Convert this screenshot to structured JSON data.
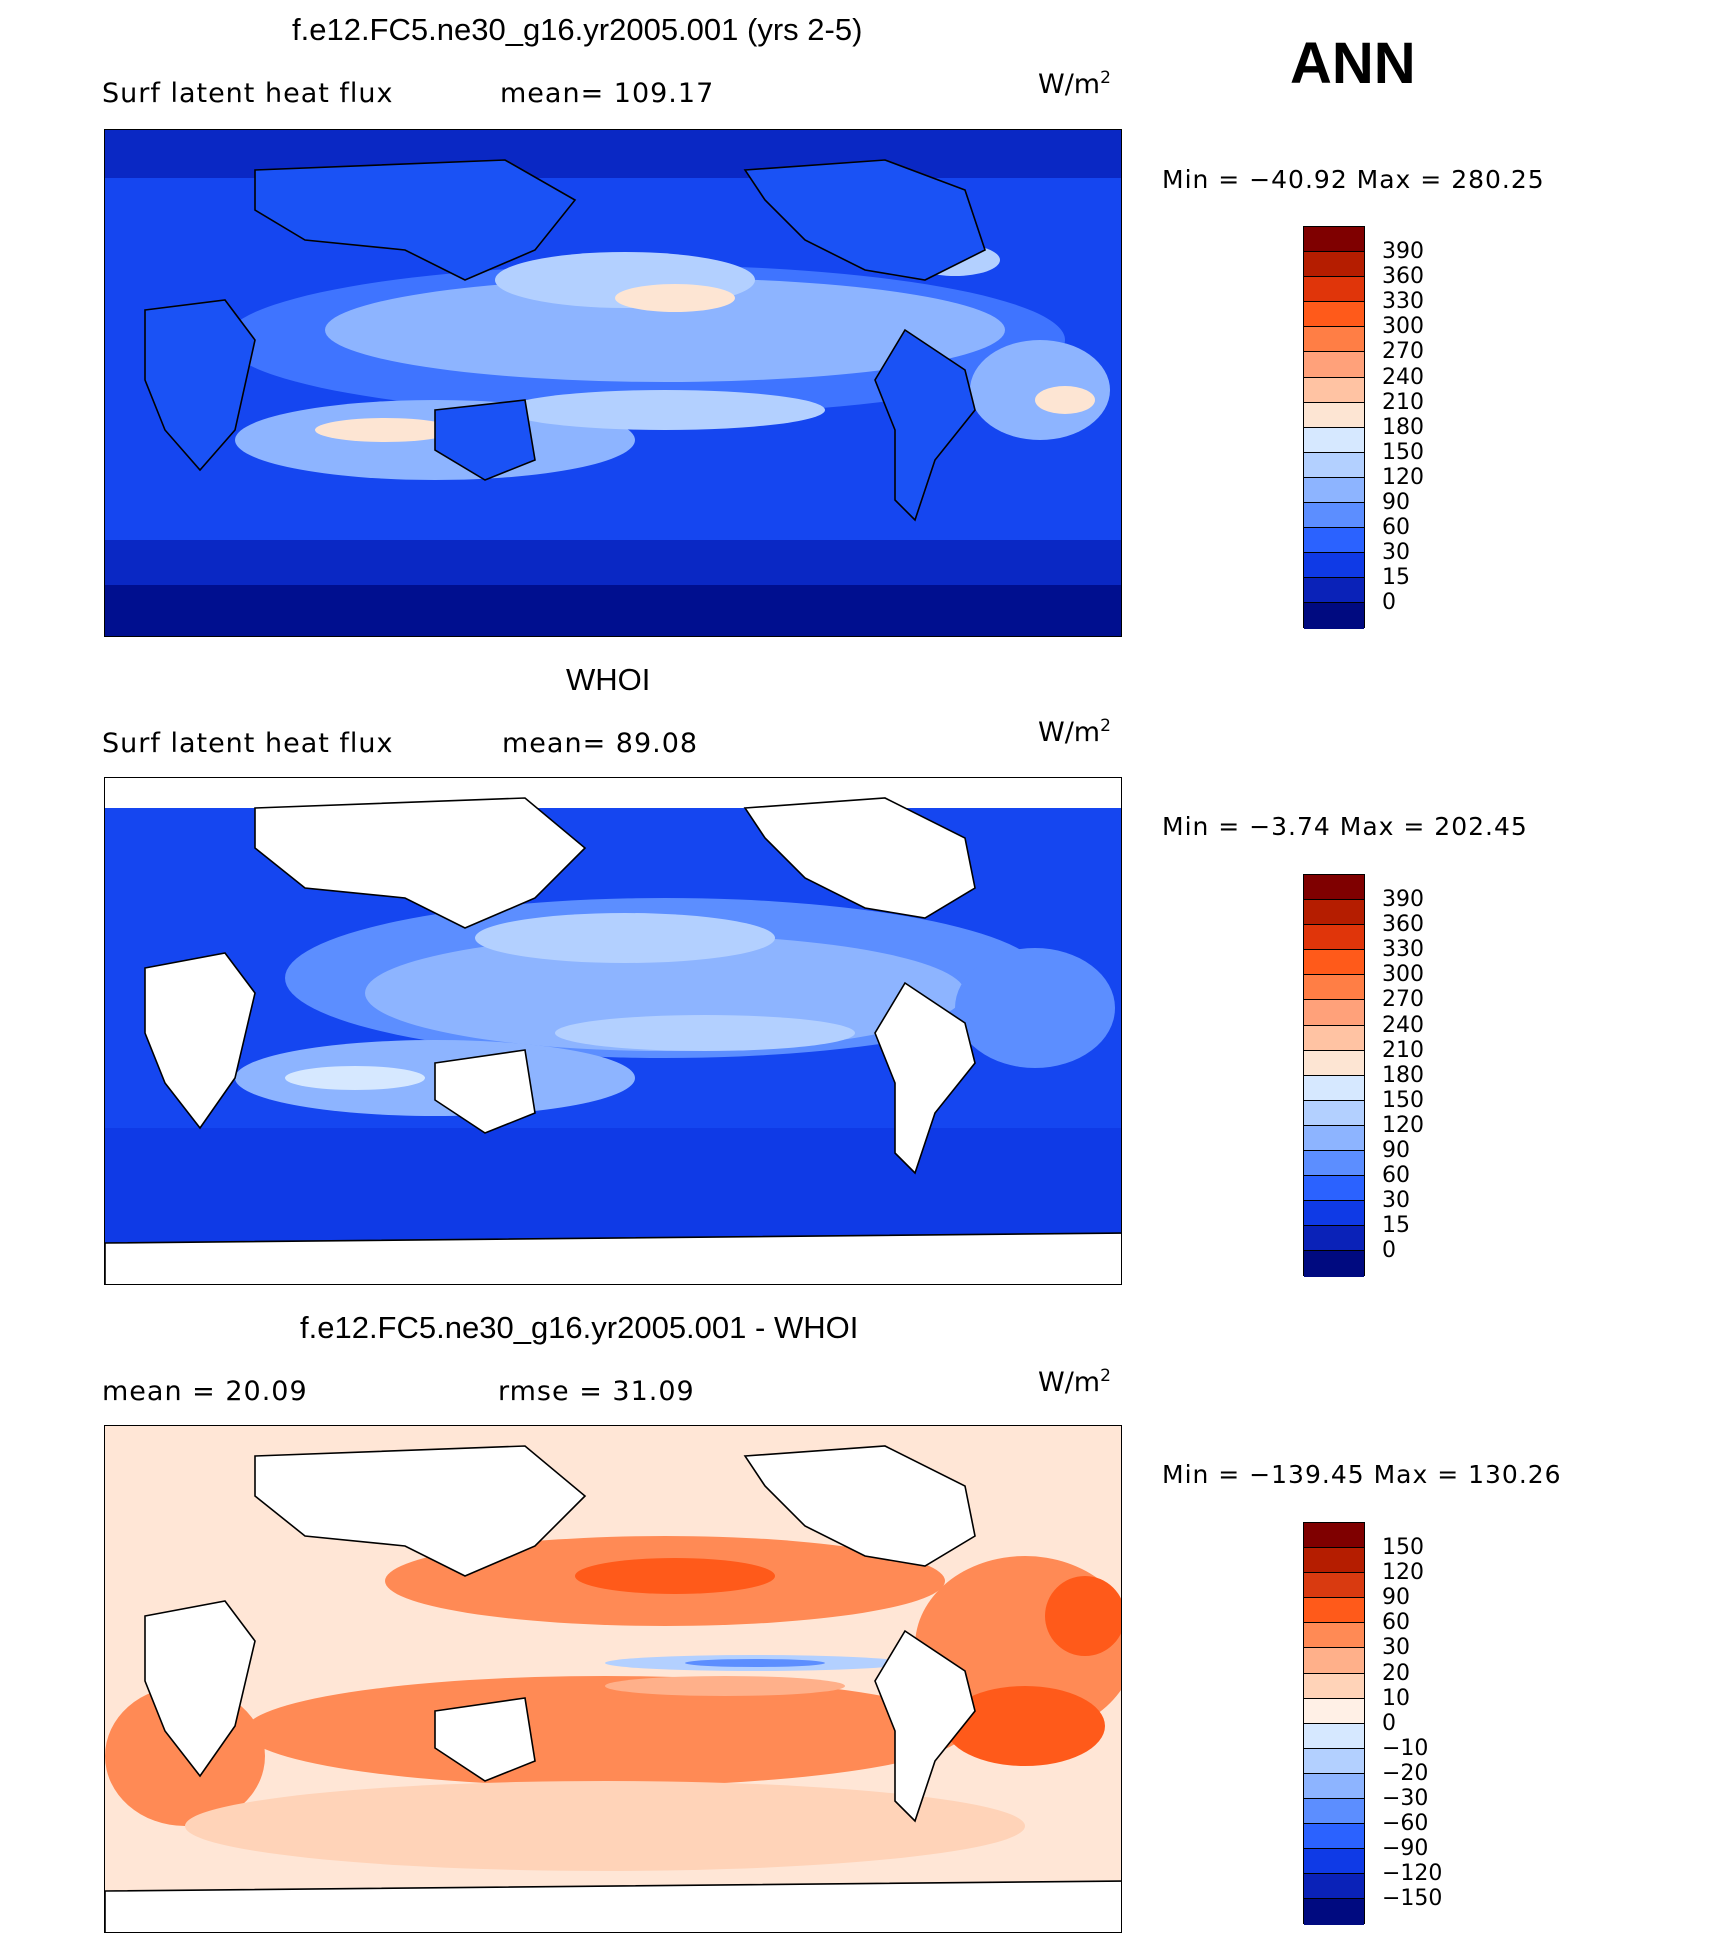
{
  "season": "ANN",
  "panels": [
    {
      "title": "f.e12.FC5.ne30_g16.yr2005.001 (yrs 2-5)",
      "field_label": "Surf  latent  heat  flux",
      "stat1": "mean=  109.17",
      "stat2": "",
      "units": "W/m",
      "units_exp": "2",
      "minmax": "Min  =  −40.92  Max  =  280.25",
      "style": "model",
      "colorbar_labels": [
        "390",
        "360",
        "330",
        "300",
        "270",
        "240",
        "210",
        "180",
        "150",
        "120",
        "90",
        "60",
        "30",
        "15",
        "0"
      ],
      "colorbar_colors": [
        "#7f0000",
        "#b51d00",
        "#e0350a",
        "#ff5a1a",
        "#ff7e45",
        "#ffa17a",
        "#ffc3a3",
        "#fde5d3",
        "#d6e8ff",
        "#b3d0ff",
        "#8db4ff",
        "#5c8eff",
        "#2b62ff",
        "#0f3ae6",
        "#0a22b8",
        "#000a80"
      ]
    },
    {
      "title": "WHOI",
      "field_label": "Surf  latent  heat  flux",
      "stat1": "mean=   89.08",
      "stat2": "",
      "units": "W/m",
      "units_exp": "2",
      "minmax": "Min  =    −3.74  Max  =  202.45",
      "style": "obs",
      "colorbar_labels": [
        "390",
        "360",
        "330",
        "300",
        "270",
        "240",
        "210",
        "180",
        "150",
        "120",
        "90",
        "60",
        "30",
        "15",
        "0"
      ],
      "colorbar_colors": [
        "#7f0000",
        "#b51d00",
        "#e0350a",
        "#ff5a1a",
        "#ff7e45",
        "#ffa17a",
        "#ffc3a3",
        "#fde5d3",
        "#d6e8ff",
        "#b3d0ff",
        "#8db4ff",
        "#5c8eff",
        "#2b62ff",
        "#0f3ae6",
        "#0a22b8",
        "#000a80"
      ]
    },
    {
      "title": "f.e12.FC5.ne30_g16.yr2005.001 - WHOI",
      "field_label": "",
      "stat1": "mean  =    20.09",
      "stat2": "rmse  =    31.09",
      "units": "W/m",
      "units_exp": "2",
      "minmax": "Min  =  −139.45  Max  =  130.26",
      "style": "diff",
      "colorbar_labels": [
        "150",
        "120",
        "90",
        "60",
        "30",
        "20",
        "10",
        "0",
        "−10",
        "−20",
        "−30",
        "−60",
        "−90",
        "−120",
        "−150"
      ],
      "colorbar_colors": [
        "#7f0000",
        "#b51d00",
        "#d93a10",
        "#ff5a1a",
        "#ff8a55",
        "#ffb08a",
        "#ffd3b8",
        "#fff0e6",
        "#d6e8ff",
        "#b3d0ff",
        "#8db4ff",
        "#5c8eff",
        "#2b62ff",
        "#0f3ae6",
        "#0a22b8",
        "#000a80"
      ]
    }
  ]
}
